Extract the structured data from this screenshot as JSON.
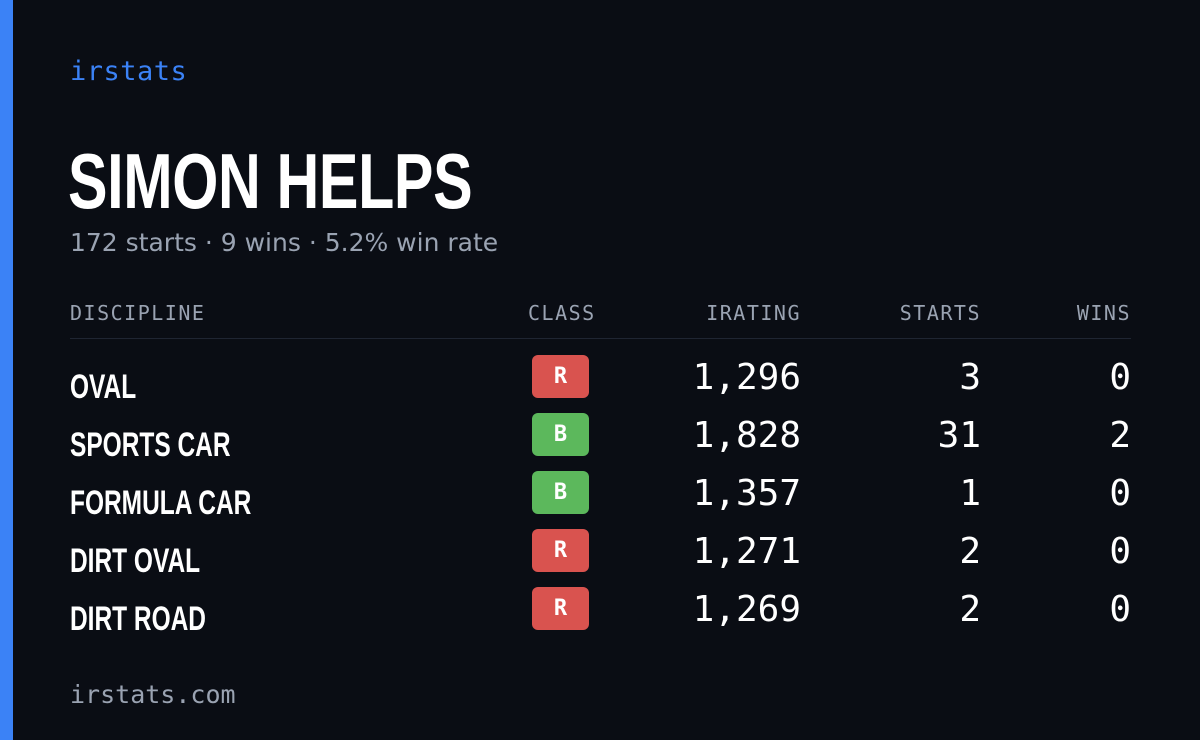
{
  "brand": "irstats",
  "driver": {
    "name": "SIMON HELPS",
    "summary": "172 starts · 9 wins · 5.2% win rate"
  },
  "table": {
    "columns": {
      "discipline": "DISCIPLINE",
      "class": "CLASS",
      "irating": "IRATING",
      "starts": "STARTS",
      "wins": "WINS"
    },
    "rows": [
      {
        "discipline": "OVAL",
        "class": "R",
        "class_color": "#d9534f",
        "irating": "1,296",
        "starts": "3",
        "wins": "0"
      },
      {
        "discipline": "SPORTS CAR",
        "class": "B",
        "class_color": "#5cb85c",
        "irating": "1,828",
        "starts": "31",
        "wins": "2"
      },
      {
        "discipline": "FORMULA CAR",
        "class": "B",
        "class_color": "#5cb85c",
        "irating": "1,357",
        "starts": "1",
        "wins": "0"
      },
      {
        "discipline": "DIRT OVAL",
        "class": "R",
        "class_color": "#d9534f",
        "irating": "1,271",
        "starts": "2",
        "wins": "0"
      },
      {
        "discipline": "DIRT ROAD",
        "class": "R",
        "class_color": "#d9534f",
        "irating": "1,269",
        "starts": "2",
        "wins": "0"
      }
    ]
  },
  "footer": "irstats.com",
  "colors": {
    "background": "#0a0d14",
    "accent": "#3b82f6",
    "muted": "#9aa3b2"
  }
}
